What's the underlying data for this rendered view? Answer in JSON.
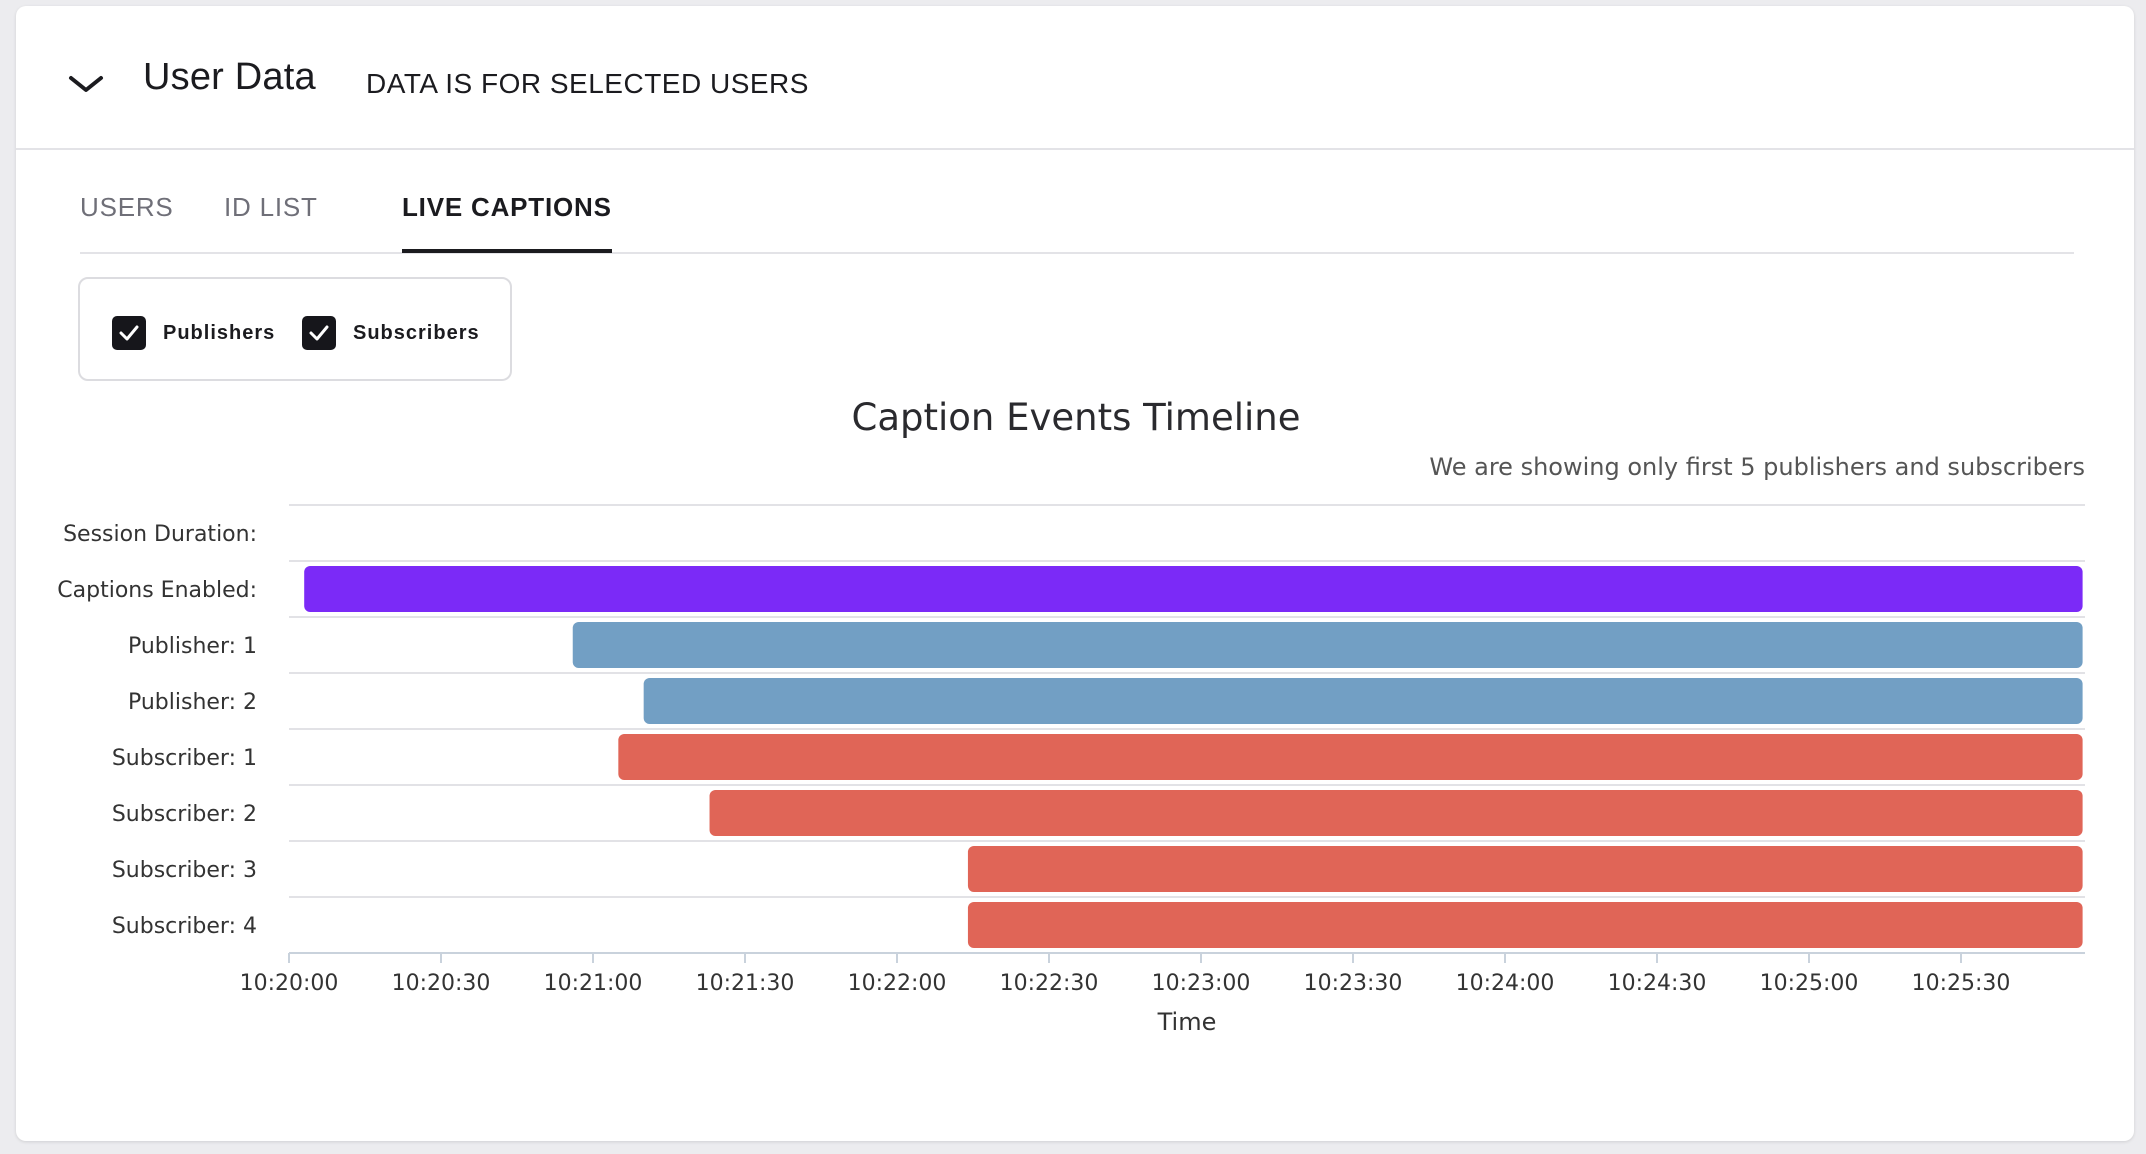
{
  "header": {
    "title": "User Data",
    "subtitle": "DATA IS FOR SELECTED USERS"
  },
  "tabs": [
    {
      "label": "USERS",
      "active": false
    },
    {
      "label": "ID LIST",
      "active": false
    },
    {
      "label": "LIVE CAPTIONS",
      "active": true
    }
  ],
  "filters": [
    {
      "label": "Publishers",
      "checked": true
    },
    {
      "label": "Subscribers",
      "checked": true
    }
  ],
  "icons": {
    "collapse": "chevron-down-icon",
    "check": "check-icon"
  },
  "chart_data": {
    "type": "timeline",
    "title": "Caption Events Timeline",
    "note": "We are showing only first 5 publishers and subscribers",
    "xlabel": "Time",
    "xlim": [
      "10:20:00",
      "10:25:58"
    ],
    "x_ticks": [
      "10:20:00",
      "10:20:30",
      "10:21:00",
      "10:21:30",
      "10:22:00",
      "10:22:30",
      "10:23:00",
      "10:23:30",
      "10:24:00",
      "10:24:30",
      "10:25:00",
      "10:25:30"
    ],
    "grid": true,
    "rows": [
      {
        "label": "Session Duration:",
        "start": null,
        "end": null,
        "color": null
      },
      {
        "label": "Captions Enabled:",
        "start": "10:20:03",
        "end": "10:25:54",
        "color": "#7b2af7"
      },
      {
        "label": "Publisher: 1",
        "start": "10:20:56",
        "end": "10:25:54",
        "color": "#729fc4"
      },
      {
        "label": "Publisher: 2",
        "start": "10:21:10",
        "end": "10:25:54",
        "color": "#729fc4"
      },
      {
        "label": "Subscriber: 1",
        "start": "10:21:05",
        "end": "10:25:54",
        "color": "#e06557"
      },
      {
        "label": "Subscriber: 2",
        "start": "10:21:23",
        "end": "10:25:54",
        "color": "#e06557"
      },
      {
        "label": "Subscriber: 3",
        "start": "10:22:14",
        "end": "10:25:54",
        "color": "#e06557"
      },
      {
        "label": "Subscriber: 4",
        "start": "10:22:14",
        "end": "10:25:54",
        "color": "#e06557"
      }
    ]
  }
}
